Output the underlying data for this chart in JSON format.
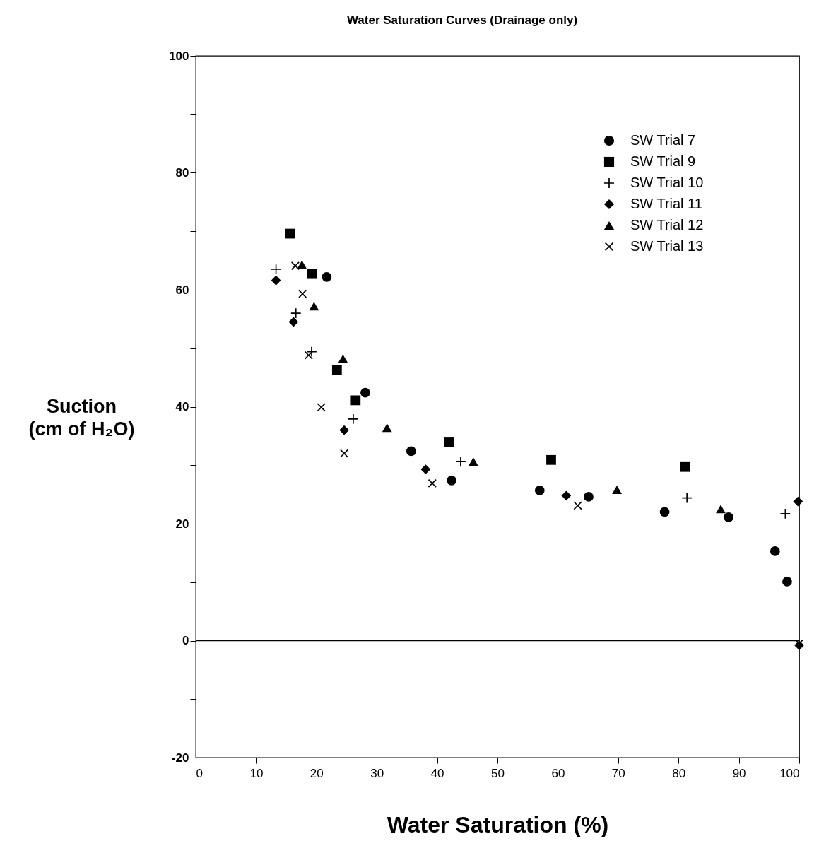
{
  "chart_data": {
    "type": "scatter",
    "title": "Water Saturation Curves (Drainage only)",
    "xlabel": "Water  Saturation (%)",
    "ylabel": "Suction (cm of H₂O)",
    "xlim": [
      0,
      100
    ],
    "xticks": [
      0,
      10,
      20,
      30,
      40,
      50,
      60,
      70,
      80,
      90,
      100
    ],
    "ylim": [
      -20,
      100
    ],
    "yticks": [
      -20,
      {
        "value": -10,
        "label": null
      },
      0,
      {
        "value": 10,
        "label": null
      },
      20,
      {
        "value": 30,
        "label": null
      },
      40,
      {
        "value": 50,
        "label": null
      },
      60,
      {
        "value": 70,
        "label": null
      },
      80,
      {
        "value": 90,
        "label": null
      },
      100
    ],
    "grid": false,
    "legend": "top right",
    "ref_lines": [
      {
        "axis": "y",
        "value": 0,
        "color": "#000000"
      }
    ],
    "series": [
      {
        "name": "SW Trial 7",
        "color": "#000000",
        "marker": "circle",
        "x": [
          21.7,
          28.1,
          35.7,
          42.4,
          57.0,
          65.1,
          77.7,
          88.3,
          96.0,
          98.0
        ],
        "values": [
          62.2,
          42.4,
          32.4,
          27.4,
          25.7,
          24.6,
          22.0,
          21.1,
          15.3,
          10.1
        ]
      },
      {
        "name": "SW Trial 9",
        "color": "#000000",
        "marker": "square",
        "x": [
          15.6,
          19.3,
          23.4,
          26.5,
          42.0,
          58.9,
          81.1
        ],
        "values": [
          69.6,
          62.7,
          46.3,
          41.1,
          33.9,
          30.9,
          29.7
        ]
      },
      {
        "name": "SW Trial 10",
        "color": "#000000",
        "marker": "plus",
        "x": [
          13.3,
          16.6,
          19.2,
          26.1,
          43.9,
          81.4,
          97.7
        ],
        "values": [
          63.5,
          56.0,
          49.4,
          37.9,
          30.6,
          24.4,
          21.7
        ]
      },
      {
        "name": "SW Trial 11",
        "color": "#000000",
        "marker": "diamond",
        "x": [
          13.3,
          16.2,
          24.6,
          38.1,
          61.4,
          99.8,
          100
        ],
        "values": [
          61.6,
          54.5,
          36.0,
          29.3,
          24.8,
          23.8,
          -0.8
        ]
      },
      {
        "name": "SW Trial 12",
        "color": "#000000",
        "marker": "triangle",
        "x": [
          17.6,
          19.6,
          24.4,
          31.7,
          46.0,
          69.8,
          87.0
        ],
        "values": [
          64.3,
          57.2,
          48.2,
          36.4,
          30.6,
          25.8,
          22.5
        ]
      },
      {
        "name": "SW Trial 13",
        "color": "#000000",
        "marker": "cross",
        "x": [
          16.5,
          17.7,
          18.7,
          20.8,
          24.6,
          39.2,
          63.3,
          100
        ],
        "values": [
          64.1,
          59.3,
          48.8,
          39.9,
          32.0,
          26.9,
          23.1,
          -0.5
        ]
      }
    ]
  }
}
